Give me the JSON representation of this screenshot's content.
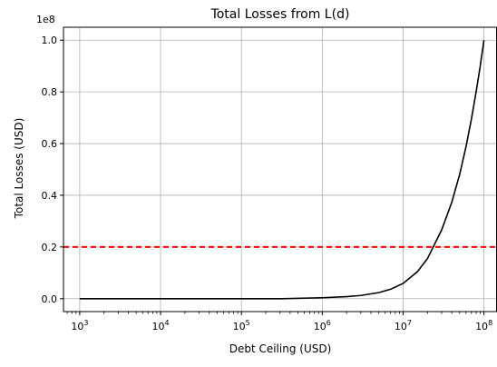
{
  "chart_data": {
    "type": "line",
    "title": "Total Losses from L(d)",
    "xlabel": "Debt Ceiling (USD)",
    "ylabel": "Total Losses (USD)",
    "x_scale": "log",
    "y_offset_label": "1e8",
    "xlim": [
      630,
      145000000
    ],
    "ylim": [
      -0.05,
      1.05
    ],
    "grid": true,
    "x_ticks": [
      {
        "value": 1000,
        "base": "10",
        "exp": "3"
      },
      {
        "value": 10000,
        "base": "10",
        "exp": "4"
      },
      {
        "value": 100000,
        "base": "10",
        "exp": "5"
      },
      {
        "value": 1000000,
        "base": "10",
        "exp": "6"
      },
      {
        "value": 10000000,
        "base": "10",
        "exp": "7"
      },
      {
        "value": 100000000,
        "base": "10",
        "exp": "8"
      }
    ],
    "y_ticks": [
      {
        "value": 0.0,
        "label": "0.0"
      },
      {
        "value": 0.2,
        "label": "0.2"
      },
      {
        "value": 0.4,
        "label": "0.4"
      },
      {
        "value": 0.6,
        "label": "0.6"
      },
      {
        "value": 0.8,
        "label": "0.8"
      },
      {
        "value": 1.0,
        "label": "1.0"
      }
    ],
    "series": [
      {
        "color": "#000000",
        "style": "solid",
        "x": [
          1000,
          3160,
          10000,
          31600,
          100000,
          316000,
          1000000,
          2000000,
          3000000,
          5000000,
          7000000,
          10000000,
          15000000,
          20000000,
          30000000,
          40000000,
          50000000,
          60000000,
          70000000,
          80000000,
          90000000,
          100000000
        ],
        "y": [
          0.0,
          0.0,
          0.0,
          0.0,
          0.0,
          0.0,
          0.0036,
          0.0077,
          0.0124,
          0.0234,
          0.0364,
          0.059,
          0.104,
          0.155,
          0.266,
          0.373,
          0.48,
          0.588,
          0.695,
          0.8,
          0.9,
          1.0
        ]
      }
    ],
    "reference_lines": [
      {
        "axis": "y",
        "value": 0.2,
        "color": "#ff0000",
        "style": "dashed"
      }
    ]
  }
}
